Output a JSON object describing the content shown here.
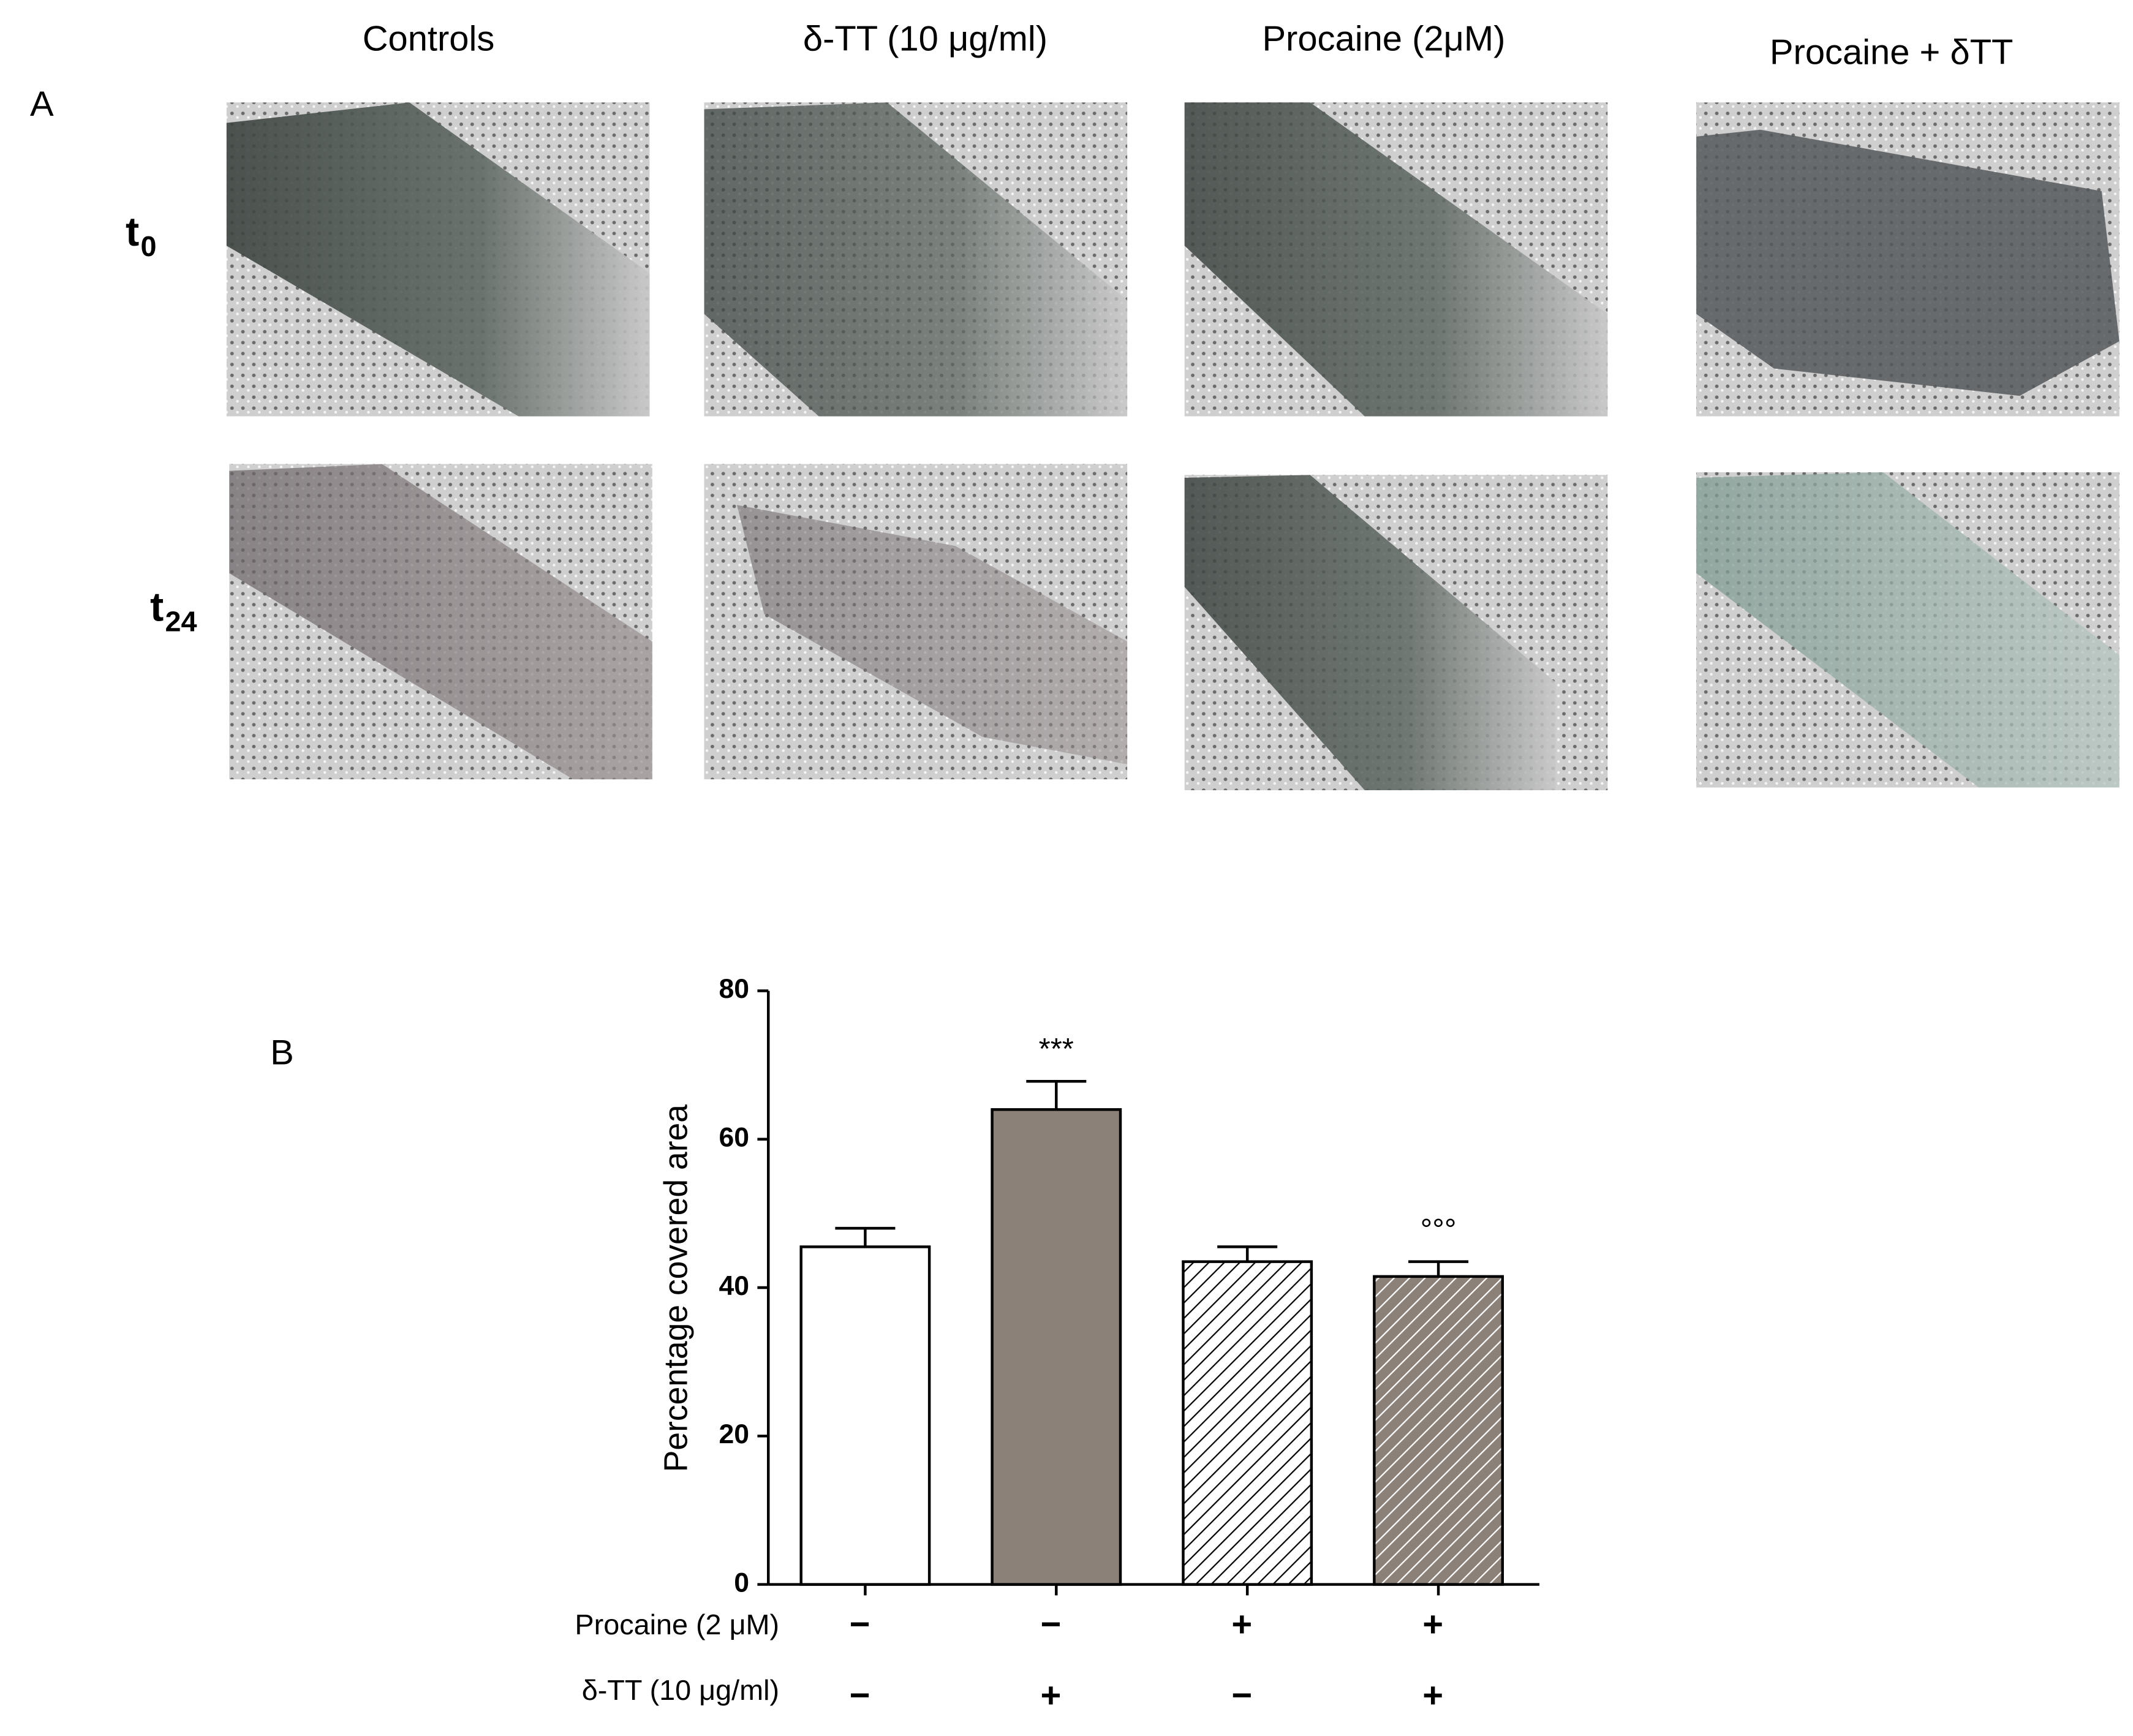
{
  "panel_a": {
    "label": "A",
    "column_headers": [
      "Controls",
      "δ-TT (10 μg/ml)",
      "Procaine (2μM)",
      "Procaine + δTT"
    ],
    "row_labels": [
      {
        "main": "t",
        "sub": "0"
      },
      {
        "main": "t",
        "sub": "24"
      }
    ]
  },
  "chart_data": {
    "type": "bar",
    "panel_label": "B",
    "y_label": "Percentage covered area",
    "values": [
      45.5,
      64,
      43.5,
      41.5
    ],
    "errors": [
      2.5,
      3.8,
      2,
      2
    ],
    "value_annotations": [
      null,
      "***",
      null,
      "°°°"
    ],
    "colors": [
      "#ffffff",
      "#8c8178",
      "#ffffff",
      "#8c8178"
    ],
    "hatch_colors": [
      null,
      null,
      "#000000",
      "#ffffff"
    ],
    "ylim": [
      0,
      80
    ],
    "yticks": [
      0,
      20,
      40,
      60,
      80
    ],
    "conditions": [
      {
        "label": "Procaine (2 μM)",
        "marks": [
          "−",
          "−",
          "+",
          "+"
        ]
      },
      {
        "label": "δ-TT (10 μg/ml)",
        "marks": [
          "−",
          "+",
          "−",
          "+"
        ]
      }
    ]
  }
}
